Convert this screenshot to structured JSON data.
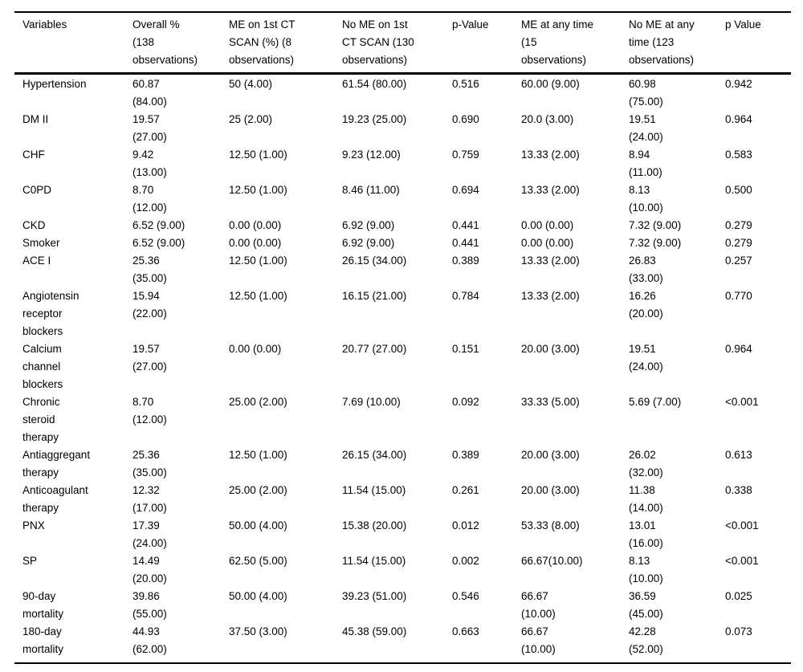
{
  "colors": {
    "background": "#ffffff",
    "text": "#000000",
    "rule": "#000000"
  },
  "table": {
    "header": [
      "Variables",
      "Overall %\n(138\nobservations)",
      "ME on 1st CT\nSCAN (%) (8\nobservations)",
      "No ME on 1st\nCT SCAN (130\nobservations)",
      "p-Value",
      "ME at any time\n(15\nobservations)",
      "No ME at any\ntime (123\nobservations)",
      "p Value"
    ],
    "rows": [
      [
        "Hypertension",
        "60.87\n(84.00)",
        "50 (4.00)",
        "61.54 (80.00)",
        "0.516",
        "60.00 (9.00)",
        "60.98\n(75.00)",
        "0.942"
      ],
      [
        "DM II",
        "19.57\n(27.00)",
        "25 (2.00)",
        "19.23 (25.00)",
        "0.690",
        "20.0 (3.00)",
        "19.51\n(24.00)",
        "0.964"
      ],
      [
        "CHF",
        "9.42\n(13.00)",
        "12.50 (1.00)",
        "9.23 (12.00)",
        "0.759",
        "13.33 (2.00)",
        "8.94\n(11.00)",
        "0.583"
      ],
      [
        "C0PD",
        "8.70\n(12.00)",
        "12.50 (1.00)",
        "8.46 (11.00)",
        "0.694",
        "13.33 (2.00)",
        "8.13\n(10.00)",
        "0.500"
      ],
      [
        "CKD",
        "6.52 (9.00)",
        "0.00 (0.00)",
        "6.92 (9.00)",
        "0.441",
        "0.00 (0.00)",
        "7.32 (9.00)",
        "0.279"
      ],
      [
        "Smoker",
        "6.52 (9.00)",
        "0.00 (0.00)",
        "6.92 (9.00)",
        "0.441",
        "0.00 (0.00)",
        "7.32 (9.00)",
        "0.279"
      ],
      [
        "ACE I",
        "25.36\n(35.00)",
        "12.50 (1.00)",
        "26.15 (34.00)",
        "0.389",
        "13.33 (2.00)",
        "26.83\n(33.00)",
        "0.257"
      ],
      [
        "Angiotensin\nreceptor\nblockers",
        "15.94\n(22.00)",
        "12.50 (1.00)",
        "16.15 (21.00)",
        "0.784",
        "13.33 (2.00)",
        "16.26\n(20.00)",
        "0.770"
      ],
      [
        "Calcium\nchannel\nblockers",
        "19.57\n(27.00)",
        "0.00 (0.00)",
        "20.77 (27.00)",
        "0.151",
        "20.00 (3.00)",
        "19.51\n(24.00)",
        "0.964"
      ],
      [
        "Chronic\nsteroid\ntherapy",
        "8.70\n(12.00)",
        "25.00 (2.00)",
        "7.69 (10.00)",
        "0.092",
        "33.33 (5.00)",
        "5.69 (7.00)",
        "<0.001"
      ],
      [
        "Antiaggregant\ntherapy",
        "25.36\n(35.00)",
        "12.50 (1.00)",
        "26.15 (34.00)",
        "0.389",
        "20.00 (3.00)",
        "26.02\n(32.00)",
        "0.613"
      ],
      [
        "Anticoagulant\ntherapy",
        "12.32\n(17.00)",
        "25.00 (2.00)",
        "11.54 (15.00)",
        "0.261",
        "20.00 (3.00)",
        "11.38\n(14.00)",
        "0.338"
      ],
      [
        "PNX",
        "17.39\n(24.00)",
        "50.00 (4.00)",
        "15.38 (20.00)",
        "0.012",
        "53.33 (8.00)",
        "13.01\n(16.00)",
        "<0.001"
      ],
      [
        "SP",
        "14.49\n(20.00)",
        "62.50 (5.00)",
        "11.54 (15.00)",
        "0.002",
        "66.67(10.00)",
        "8.13\n(10.00)",
        "<0.001"
      ],
      [
        "90-day\nmortality",
        "39.86\n(55.00)",
        "50.00 (4.00)",
        "39.23 (51.00)",
        "0.546",
        "66.67\n(10.00)",
        "36.59\n(45.00)",
        "0.025"
      ],
      [
        "180-day\nmortality",
        "44.93\n(62.00)",
        "37.50 (3.00)",
        "45.38 (59.00)",
        "0.663",
        "66.67\n(10.00)",
        "42.28\n(52.00)",
        "0.073"
      ]
    ]
  }
}
